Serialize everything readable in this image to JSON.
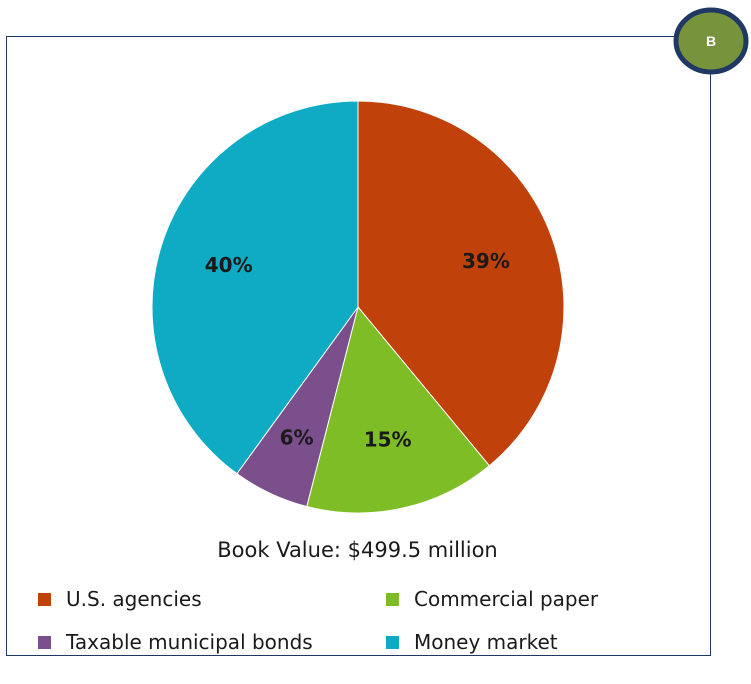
{
  "badge": {
    "label": "B",
    "fill": "#77933c",
    "stroke": "#1f3864"
  },
  "chart_data": {
    "type": "pie",
    "title": "Book Value: $499.5 million",
    "slices": [
      {
        "name": "U.S. agencies",
        "value": 39,
        "label": "39%",
        "color": "#c0420a"
      },
      {
        "name": "Commercial paper",
        "value": 15,
        "label": "15%",
        "color": "#7ebd26"
      },
      {
        "name": "Taxable municipal bonds",
        "value": 6,
        "label": "6%",
        "color": "#7a4f8b"
      },
      {
        "name": "Money market",
        "value": 40,
        "label": "40%",
        "color": "#0fabc4"
      }
    ],
    "legend": "bottom"
  }
}
